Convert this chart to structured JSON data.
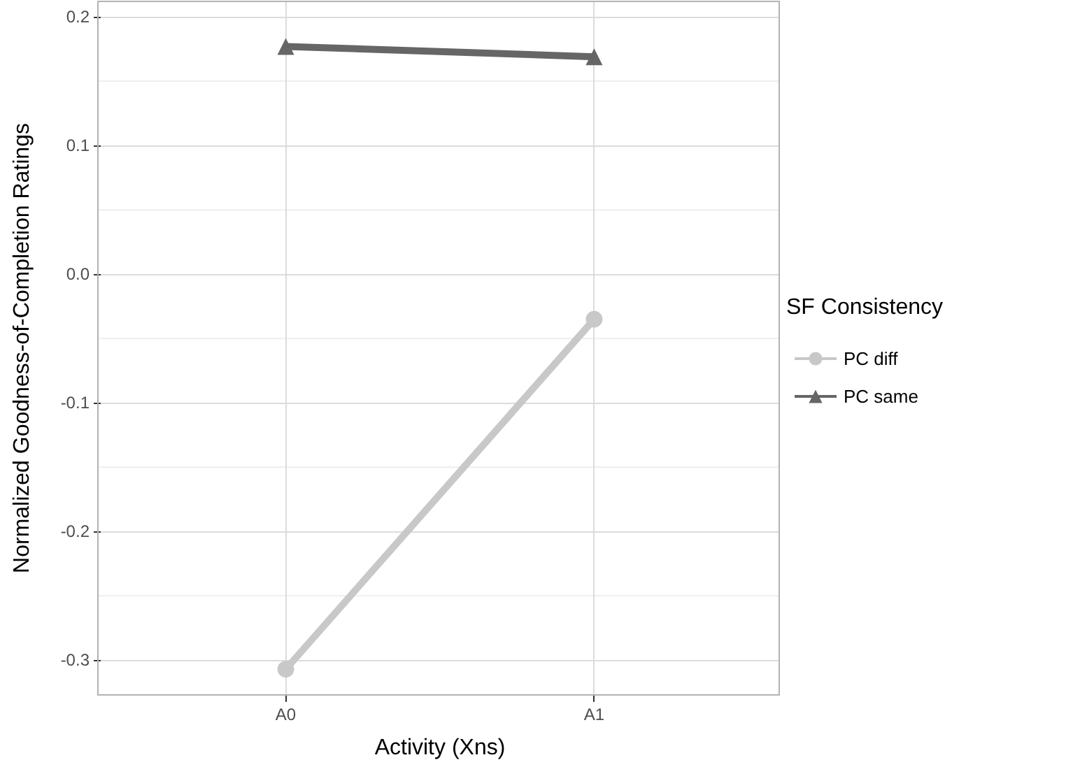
{
  "chart_data": {
    "type": "line",
    "xlabel": "Activity (Xns)",
    "ylabel": "Normalized Goodness-of-Completion Ratings",
    "legend_title": "SF Consistency",
    "categories": [
      "A0",
      "A1"
    ],
    "series": [
      {
        "name": "PC diff",
        "color": "#c8c8c8",
        "marker": "circle",
        "values": [
          -0.307,
          -0.035
        ]
      },
      {
        "name": "PC same",
        "color": "#666666",
        "marker": "triangle",
        "values": [
          0.177,
          0.169
        ]
      }
    ],
    "ylim": [
      -0.327,
      0.212
    ],
    "yticks": [
      {
        "value": -0.3,
        "label": "-0.3"
      },
      {
        "value": -0.2,
        "label": "-0.2"
      },
      {
        "value": -0.1,
        "label": "-0.1"
      },
      {
        "value": 0,
        "label": "0.0"
      },
      {
        "value": 0.1,
        "label": "0.1"
      },
      {
        "value": 0.2,
        "label": "0.2"
      }
    ],
    "grid": true,
    "legend": "right"
  }
}
